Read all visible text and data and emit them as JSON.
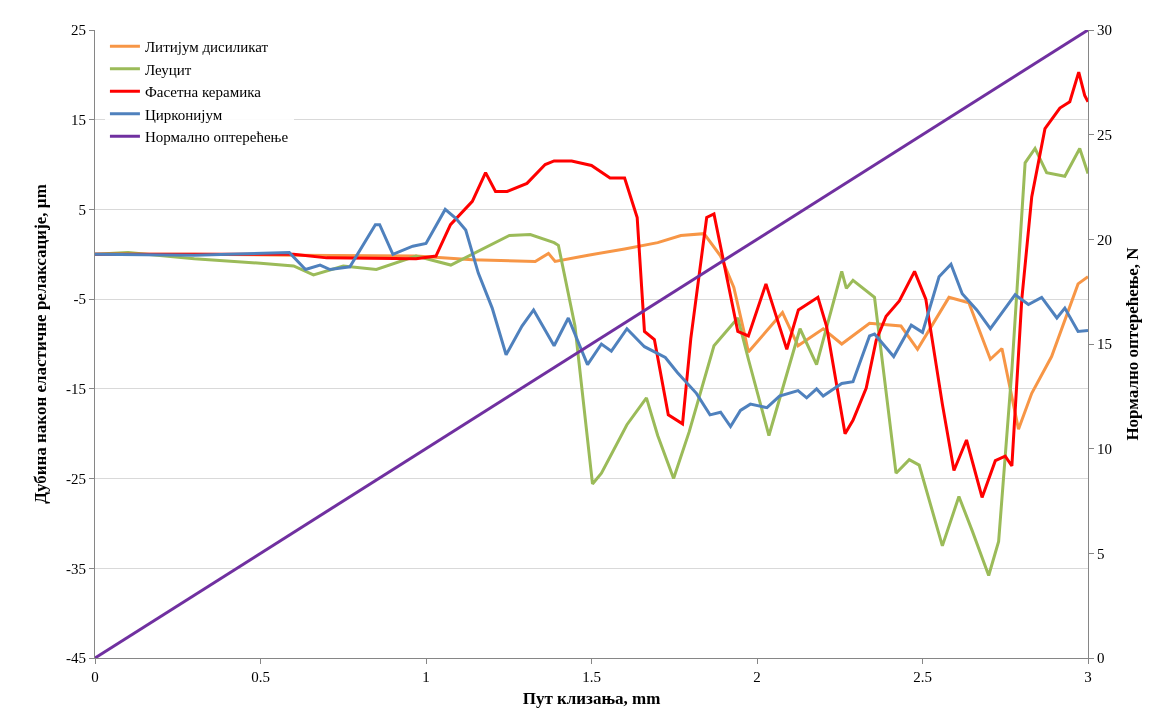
{
  "chart_data": {
    "type": "line",
    "xlabel": "Пут клизања, mm",
    "ylabel": "Дубина након еластичне релаксације, µm",
    "y2label": "Нормално оптерећење, N",
    "xlim": [
      0,
      3
    ],
    "xticks": [
      0,
      0.5,
      1,
      1.5,
      2,
      2.5,
      3
    ],
    "ylim": [
      -45,
      25
    ],
    "yticks": [
      -45,
      -35,
      -25,
      -15,
      -5,
      5,
      15,
      25
    ],
    "y2lim": [
      0,
      30
    ],
    "y2ticks": [
      0,
      5,
      10,
      15,
      20,
      25,
      30
    ],
    "grid": "y",
    "legend": "top left",
    "marker": "none",
    "line_style": "solid",
    "series": [
      {
        "name": "Литијум дисиликат",
        "color": "#f79646",
        "x": [
          0,
          0.3,
          0.6,
          0.97,
          1.14,
          1.33,
          1.37,
          1.39,
          1.49,
          1.6,
          1.7,
          1.77,
          1.84,
          1.89,
          1.93,
          1.96,
          1.974,
          2.077,
          2.124,
          2.2,
          2.256,
          2.34,
          2.435,
          2.485,
          2.58,
          2.64,
          2.705,
          2.74,
          2.79,
          2.83,
          2.89,
          2.97,
          3.0
        ],
        "values": [
          0,
          0,
          -0.1,
          -0.2,
          -0.6,
          -0.8,
          0.1,
          -0.8,
          -0.1,
          0.6,
          1.3,
          2.1,
          2.3,
          -0.2,
          -3.7,
          -8.5,
          -10.9,
          -6.5,
          -10.2,
          -8.3,
          -10,
          -7.7,
          -8.0,
          -10.6,
          -4.8,
          -5.4,
          -11.7,
          -10.5,
          -19.5,
          -15.5,
          -11.4,
          -3.3,
          -2.5
        ]
      },
      {
        "name": "Леуцит",
        "color": "#9bbb59",
        "x": [
          0,
          0.1,
          0.3,
          0.5,
          0.6,
          0.66,
          0.75,
          0.85,
          0.97,
          1.075,
          1.252,
          1.315,
          1.387,
          1.4,
          1.45,
          1.503,
          1.53,
          1.607,
          1.666,
          1.7,
          1.748,
          1.795,
          1.87,
          1.942,
          1.974,
          2.036,
          2.13,
          2.18,
          2.256,
          2.27,
          2.29,
          2.355,
          2.42,
          2.46,
          2.49,
          2.56,
          2.61,
          2.65,
          2.7,
          2.73,
          2.77,
          2.81,
          2.84,
          2.875,
          2.93,
          2.975,
          3.0
        ],
        "values": [
          0,
          0.2,
          -0.5,
          -1,
          -1.3,
          -2.3,
          -1.3,
          -1.7,
          -0.2,
          -1.2,
          2.1,
          2.2,
          1.3,
          1.0,
          -8,
          -25.6,
          -24.4,
          -19,
          -16,
          -20.2,
          -25,
          -19.8,
          -10.2,
          -7.1,
          -11.7,
          -20.2,
          -8.3,
          -12.3,
          -1.9,
          -3.8,
          -2.9,
          -4.8,
          -24.4,
          -22.9,
          -23.5,
          -32.5,
          -27,
          -30.8,
          -35.8,
          -32,
          -12.9,
          10.2,
          11.8,
          9.1,
          8.7,
          11.8,
          9
        ]
      },
      {
        "name": "Фасетна керамика",
        "color": "#ff0000",
        "x": [
          0,
          0.6,
          0.7,
          0.97,
          1.03,
          1.074,
          1.14,
          1.18,
          1.21,
          1.245,
          1.305,
          1.36,
          1.387,
          1.44,
          1.5,
          1.556,
          1.6,
          1.638,
          1.66,
          1.69,
          1.732,
          1.775,
          1.8,
          1.848,
          1.87,
          1.942,
          1.974,
          2.027,
          2.09,
          2.125,
          2.184,
          2.21,
          2.266,
          2.29,
          2.33,
          2.36,
          2.39,
          2.43,
          2.476,
          2.51,
          2.56,
          2.595,
          2.633,
          2.68,
          2.72,
          2.75,
          2.77,
          2.8,
          2.83,
          2.87,
          2.915,
          2.945,
          2.972,
          2.99,
          3.0
        ],
        "values": [
          0,
          0,
          -0.4,
          -0.5,
          -0.2,
          3.3,
          5.9,
          9.1,
          7,
          7,
          7.9,
          10,
          10.4,
          10.4,
          9.9,
          8.5,
          8.5,
          4.1,
          -8.6,
          -9.5,
          -17.9,
          -18.9,
          -9.4,
          4.1,
          4.5,
          -8.6,
          -9.1,
          -3.3,
          -10.6,
          -6.2,
          -4.8,
          -8,
          -20,
          -18.5,
          -14.9,
          -9.6,
          -6.9,
          -5.2,
          -1.9,
          -5,
          -16.7,
          -24.1,
          -20.7,
          -27.1,
          -23,
          -22.5,
          -23.6,
          -5,
          6.4,
          14,
          16.3,
          17,
          20.3,
          17.7,
          17
        ]
      },
      {
        "name": "Цирконијум",
        "color": "#4f81bd",
        "x": [
          0,
          0.3,
          0.587,
          0.636,
          0.68,
          0.71,
          0.77,
          0.847,
          0.86,
          0.9,
          0.96,
          1.0,
          1.058,
          1.09,
          1.12,
          1.158,
          1.2,
          1.242,
          1.29,
          1.325,
          1.387,
          1.43,
          1.488,
          1.53,
          1.56,
          1.607,
          1.66,
          1.723,
          1.76,
          1.817,
          1.858,
          1.89,
          1.92,
          1.95,
          1.98,
          2.03,
          2.068,
          2.124,
          2.15,
          2.18,
          2.2,
          2.256,
          2.29,
          2.34,
          2.355,
          2.413,
          2.466,
          2.5,
          2.55,
          2.586,
          2.62,
          2.664,
          2.705,
          2.78,
          2.82,
          2.86,
          2.906,
          2.93,
          2.97,
          3.0
        ],
        "values": [
          0,
          -0.1,
          0.2,
          -1.7,
          -1.2,
          -1.7,
          -1.4,
          3.3,
          3.3,
          0.0,
          0.9,
          1.2,
          5.0,
          4,
          2.7,
          -2.1,
          -6,
          -11.2,
          -8,
          -6.2,
          -10.2,
          -7.1,
          -12.3,
          -10,
          -10.8,
          -8.3,
          -10.3,
          -11.5,
          -13.2,
          -15.5,
          -17.9,
          -17.6,
          -19.2,
          -17.4,
          -16.7,
          -17.1,
          -15.8,
          -15.2,
          -16,
          -15,
          -15.8,
          -14.4,
          -14.2,
          -9.1,
          -8.9,
          -11.4,
          -7.9,
          -8.7,
          -2.5,
          -1.1,
          -4.4,
          -6.2,
          -8.3,
          -4.5,
          -5.6,
          -4.8,
          -7.1,
          -6.0,
          -8.6,
          -8.5
        ]
      },
      {
        "name": "Нормално оптерећење",
        "color": "#7030a0",
        "axis": "y2",
        "x": [
          0,
          3
        ],
        "values": [
          0,
          30
        ]
      }
    ]
  }
}
